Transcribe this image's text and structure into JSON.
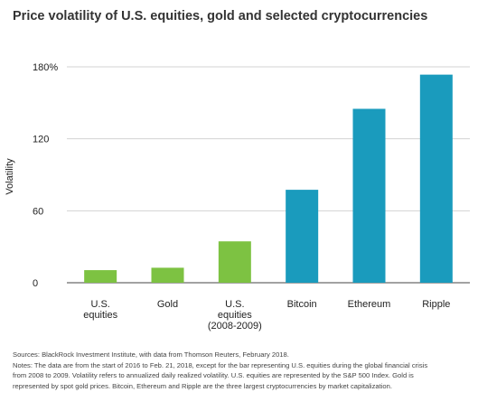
{
  "title": "Price volatility of U.S. equities, gold and selected cryptocurrencies",
  "chart_data": {
    "type": "bar",
    "title": "Price volatility of U.S. equities, gold and selected cryptocurrencies",
    "xlabel": "",
    "ylabel": "Volatility",
    "ylim": [
      0,
      180
    ],
    "y_ticks": [
      "0",
      "60",
      "120",
      "180%"
    ],
    "grid": true,
    "categories": [
      [
        "U.S.",
        "equities"
      ],
      [
        "Gold"
      ],
      [
        "U.S.",
        "equities",
        "(2008-2009)"
      ],
      [
        "Bitcoin"
      ],
      [
        "Ethereum"
      ],
      [
        "Ripple"
      ]
    ],
    "values": [
      10.5,
      12.5,
      34.5,
      77.5,
      145,
      173.5
    ],
    "colors": [
      "#7dc242",
      "#7dc242",
      "#7dc242",
      "#1a9bbd",
      "#1a9bbd",
      "#1a9bbd"
    ]
  },
  "footnote": {
    "lines": [
      "Sources: BlackRock Investment Institute, with data from Thomson Reuters, February 2018.",
      "Notes: The data are from the start of 2016 to Feb. 21, 2018, except for the bar representing U.S. equities during the global financial crisis",
      "from 2008 to 2009. Volatility refers to annualized daily realized volatility. U.S. equities are represented by the S&P 500 Index. Gold is",
      "represented by spot gold prices. Bitcoin, Ethereum and Ripple are the three largest cryptocurrencies by market capitalization."
    ]
  }
}
